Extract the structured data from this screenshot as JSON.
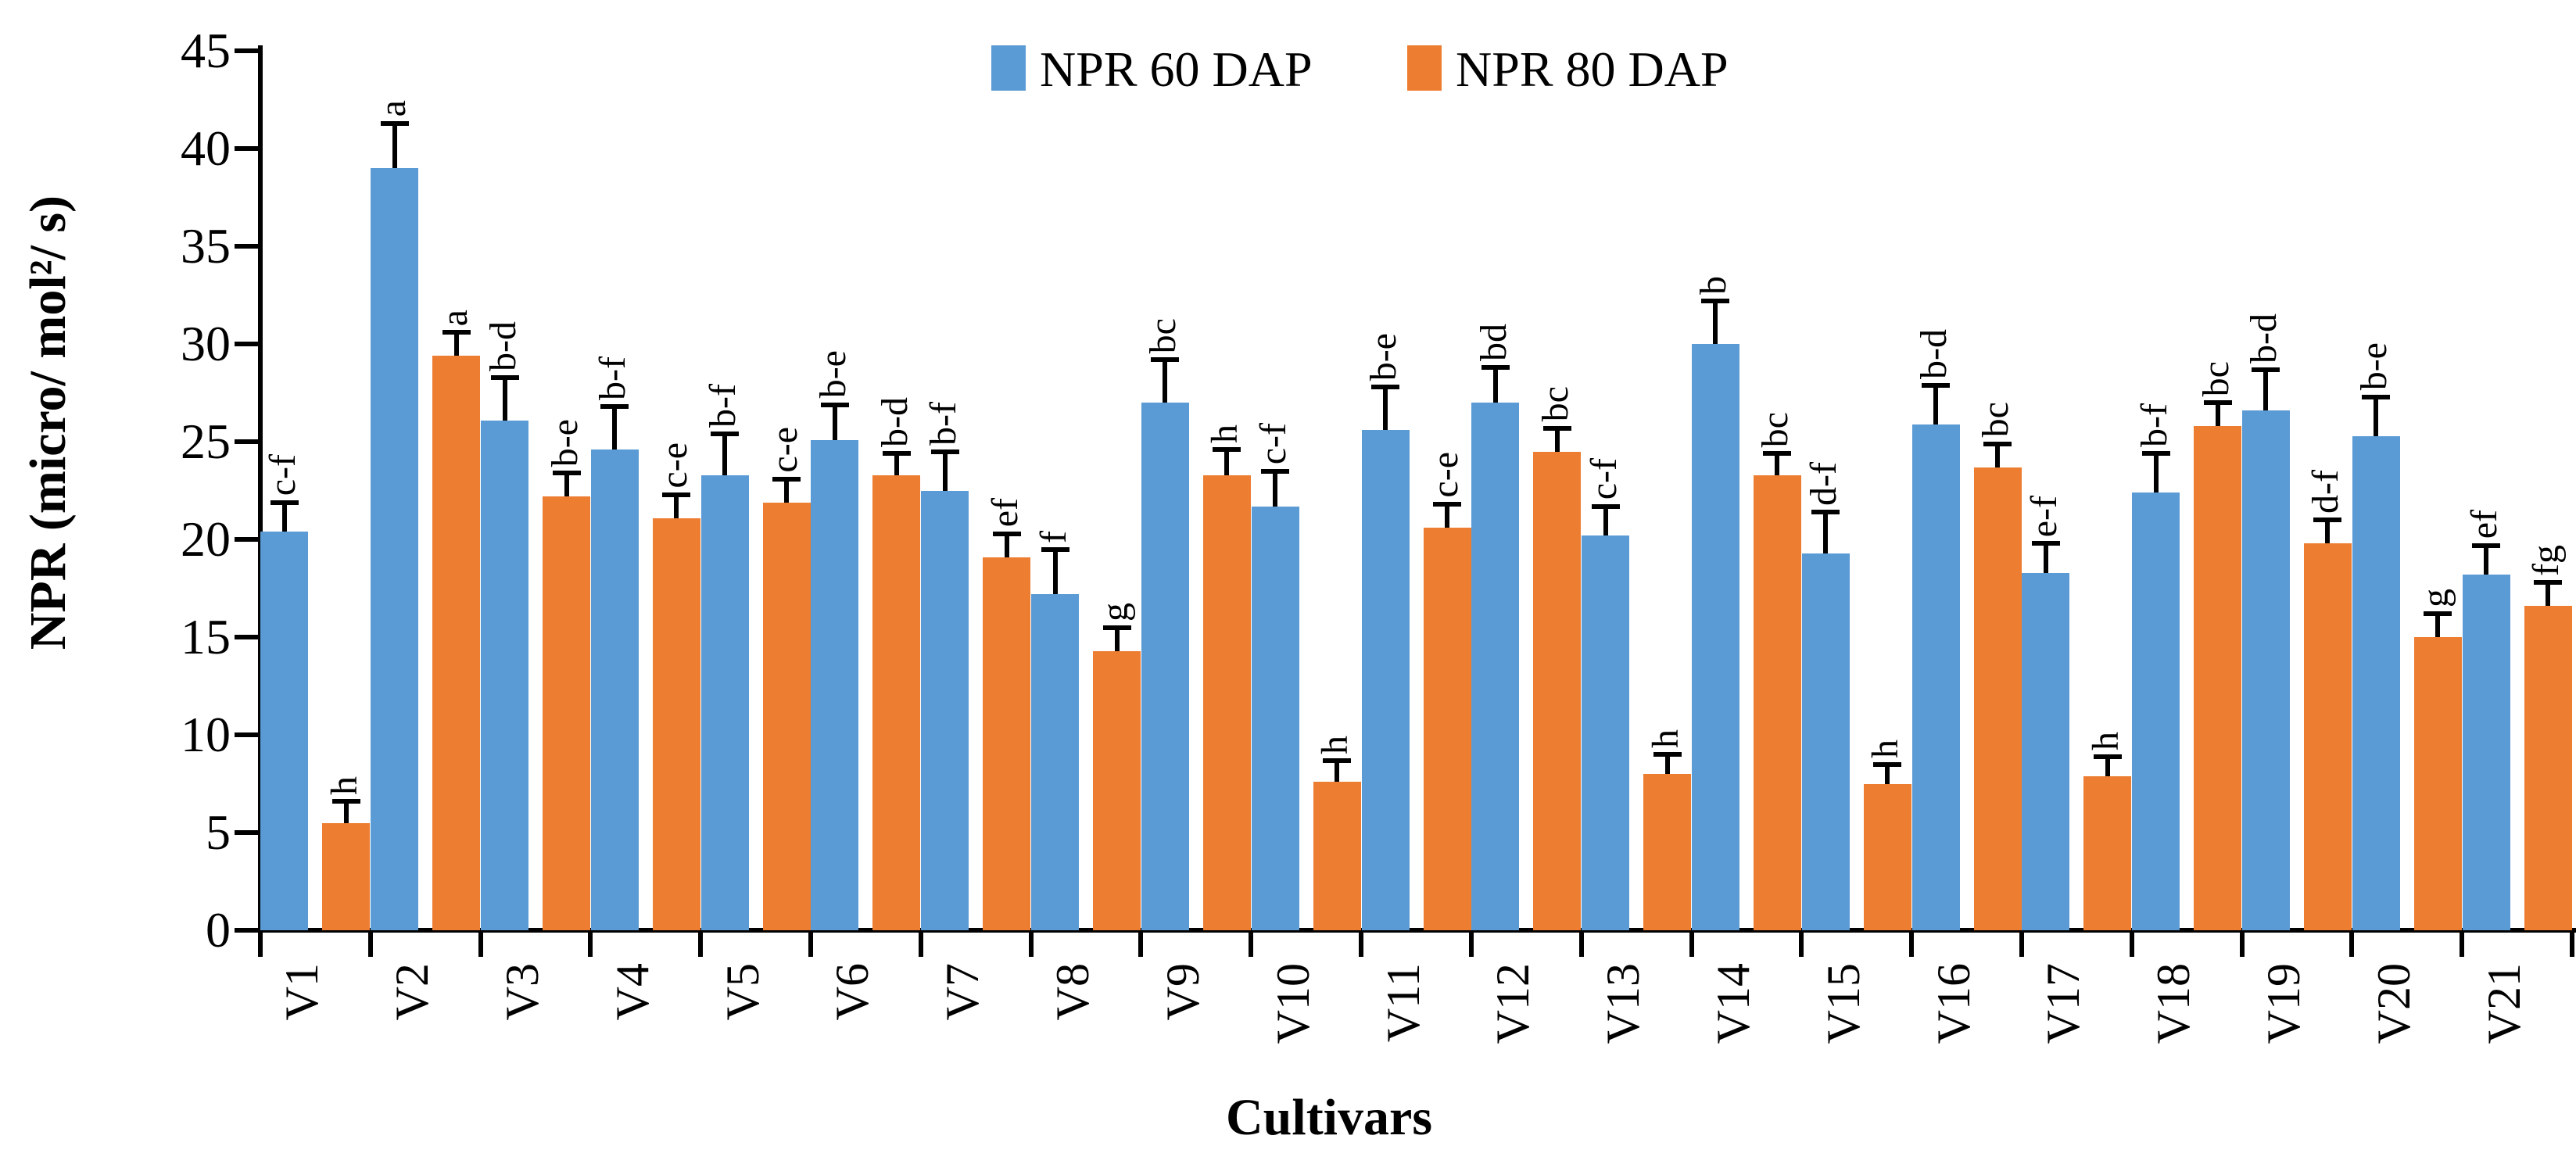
{
  "figure": {
    "background": "#ffffff"
  },
  "legend": {
    "items": [
      {
        "label": "NPR 60 DAP",
        "color": "#5B9BD5"
      },
      {
        "label": "NPR 80 DAP",
        "color": "#ED7D31"
      }
    ]
  },
  "y_axis": {
    "title": "NPR (micro/ mol²/ s)",
    "min": 0,
    "max": 45,
    "step": 5,
    "tick_labels": [
      "0",
      "5",
      "10",
      "15",
      "20",
      "25",
      "30",
      "35",
      "40",
      "45"
    ]
  },
  "x_axis": {
    "title": "Cultivars"
  },
  "chart_data": {
    "type": "bar",
    "title": "",
    "xlabel": "Cultivars",
    "ylabel": "NPR (micro/ mol²/ s)",
    "ylim": [
      0,
      45
    ],
    "y_step": 5,
    "grid": false,
    "legend_position": "top-center",
    "error_bars": "upper",
    "value_label_style": "significance letters rotated 90° counterclockwise above error bars",
    "categories": [
      "V1",
      "V2",
      "V3",
      "V4",
      "V5",
      "V6",
      "V7",
      "V8",
      "V9",
      "V10",
      "V11",
      "V12",
      "V13",
      "V14",
      "V15",
      "V16",
      "V17",
      "V18",
      "V19",
      "V20",
      "V21"
    ],
    "series": [
      {
        "name": "NPR 60 DAP",
        "color": "#5B9BD5",
        "values": [
          20.4,
          39.0,
          26.1,
          24.6,
          23.3,
          25.1,
          22.5,
          17.2,
          27.0,
          21.7,
          25.6,
          27.0,
          20.2,
          30.0,
          19.3,
          25.9,
          18.3,
          22.4,
          26.6,
          25.3,
          18.2
        ],
        "errors": [
          1.5,
          2.3,
          2.2,
          2.2,
          2.1,
          1.8,
          2.0,
          2.3,
          2.2,
          1.8,
          2.2,
          1.8,
          1.5,
          2.2,
          2.1,
          2.0,
          1.5,
          2.0,
          2.1,
          2.0,
          1.5
        ],
        "sig_letters": [
          "c-f",
          "a",
          "b-d",
          "b-f",
          "b-f",
          "b-e",
          "b-f",
          "f",
          "bc",
          "c-f",
          "b-e",
          "bd",
          "c-f",
          "b",
          "d-f",
          "b-d",
          "e-f",
          "b-f",
          "b-d",
          "b-e",
          "ef"
        ]
      },
      {
        "name": "NPR 80 DAP",
        "color": "#ED7D31",
        "values": [
          5.5,
          29.4,
          22.2,
          21.1,
          21.9,
          23.3,
          19.1,
          14.3,
          23.3,
          7.6,
          20.6,
          24.5,
          8.0,
          23.3,
          7.5,
          23.7,
          7.9,
          25.8,
          19.8,
          15.0,
          16.6
        ],
        "errors": [
          1.1,
          1.2,
          1.2,
          1.2,
          1.2,
          1.1,
          1.2,
          1.2,
          1.3,
          1.1,
          1.2,
          1.2,
          1.0,
          1.1,
          1.0,
          1.2,
          1.0,
          1.2,
          1.2,
          1.2,
          1.2
        ],
        "sig_letters": [
          "h",
          "a",
          "b-e",
          "c-e",
          "c-e",
          "b-d",
          "ef",
          "g",
          "h",
          "h",
          "c-e",
          "bc",
          "h",
          "bc",
          "h",
          "bc",
          "h",
          "bc",
          "d-f",
          "g",
          "fg"
        ]
      }
    ]
  }
}
